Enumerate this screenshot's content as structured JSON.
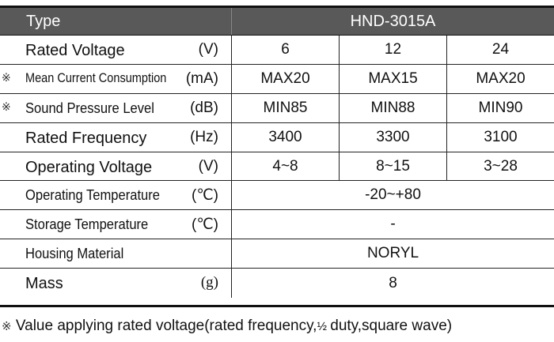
{
  "header": {
    "type_label": "Type",
    "model": "HND-3015A"
  },
  "footnote_mark": "※",
  "rows": [
    {
      "label": "Rated Voltage",
      "unit": "(V)",
      "marked": false,
      "values": [
        "6",
        "12",
        "24"
      ]
    },
    {
      "label": "Mean Current Consumption",
      "unit": "(mA)",
      "marked": true,
      "values": [
        "MAX20",
        "MAX15",
        "MAX20"
      ]
    },
    {
      "label": "Sound Pressure Level",
      "unit": "(dB)",
      "marked": true,
      "values": [
        "MIN85",
        "MIN88",
        "MIN90"
      ]
    },
    {
      "label": "Rated Frequency",
      "unit": "(Hz)",
      "marked": false,
      "values": [
        "3400",
        "3300",
        "3100"
      ]
    },
    {
      "label": "Operating Voltage",
      "unit": "(V)",
      "marked": false,
      "values": [
        "4~8",
        "8~15",
        "3~28"
      ]
    },
    {
      "label": "Operating Temperature",
      "unit": "(℃)",
      "marked": false,
      "values": [
        "-20~+80"
      ]
    },
    {
      "label": "Storage Temperature",
      "unit": "(℃)",
      "marked": false,
      "values": [
        "-"
      ]
    },
    {
      "label": "Housing Material",
      "unit": "",
      "marked": false,
      "values": [
        "NORYL"
      ]
    },
    {
      "label": "Mass",
      "unit": "(g)",
      "marked": false,
      "values": [
        "8"
      ]
    }
  ],
  "footnote": {
    "before": "Value applying rated voltage(rated frequency,",
    "fraction": "½",
    "after": " duty,square wave)"
  }
}
